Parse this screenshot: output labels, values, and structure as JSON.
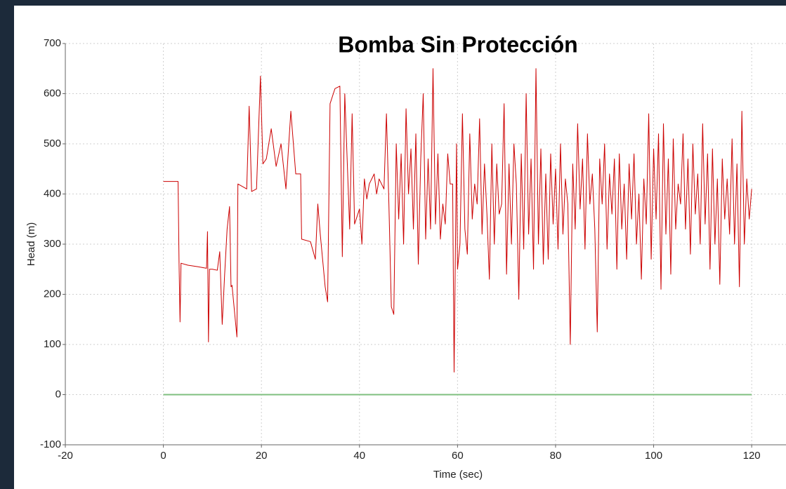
{
  "chart_data": {
    "type": "line",
    "title": "Bomba Sin Protección",
    "x_label": "Time (sec)",
    "y_label": "Head (m)",
    "xlim": [
      -20,
      127
    ],
    "ylim": [
      -100,
      700
    ],
    "xticks": [
      -20,
      0,
      20,
      40,
      60,
      80,
      100,
      120
    ],
    "yticks": [
      -100,
      0,
      100,
      200,
      300,
      400,
      500,
      600,
      700
    ],
    "grid": true,
    "series": [
      {
        "color": "#cc0000",
        "x": [
          0,
          3,
          3.2,
          3.4,
          3.6,
          5,
          7,
          8.8,
          9,
          9.2,
          9.4,
          10,
          11,
          11.5,
          12,
          12.5,
          13,
          13.5,
          13.8,
          14,
          15,
          15.2,
          17,
          17.5,
          18,
          19,
          19.8,
          20.3,
          21,
          22,
          23,
          24,
          25,
          26,
          27,
          28,
          28.2,
          30,
          31,
          31.5,
          32,
          33,
          33.5,
          34,
          35,
          36,
          36.5,
          37,
          38,
          38.5,
          39,
          40,
          40.5,
          41,
          41.5,
          42,
          43,
          43.5,
          44,
          45,
          45.5,
          46,
          46.5,
          47,
          47.5,
          48,
          48.5,
          49,
          49.5,
          50,
          50.5,
          51,
          51.5,
          52,
          52.5,
          53,
          53.5,
          54,
          54.5,
          55,
          55.5,
          56,
          56.5,
          57,
          57.5,
          58,
          58.5,
          59,
          59.3,
          59.8,
          60,
          60.5,
          61,
          61.5,
          62,
          62.5,
          63,
          63.5,
          64,
          64.5,
          65,
          65.5,
          66,
          66.5,
          67,
          67.5,
          68,
          68.5,
          69,
          69.5,
          70,
          70.5,
          71,
          71.5,
          72,
          72.5,
          73,
          73.5,
          74,
          74.5,
          75,
          75.5,
          76,
          76.5,
          77,
          77.5,
          78,
          78.5,
          79,
          79.5,
          80,
          80.5,
          81,
          81.5,
          82,
          82.5,
          83,
          83.5,
          84,
          84.5,
          85,
          85.5,
          86,
          86.5,
          87,
          87.5,
          88,
          88.5,
          89,
          89.5,
          90,
          90.5,
          91,
          91.5,
          92,
          92.5,
          93,
          93.5,
          94,
          94.5,
          95,
          95.5,
          96,
          96.5,
          97,
          97.5,
          98,
          98.5,
          99,
          99.5,
          100,
          100.5,
          101,
          101.5,
          102,
          102.5,
          103,
          103.5,
          104,
          104.5,
          105,
          105.5,
          106,
          106.5,
          107,
          107.5,
          108,
          108.5,
          109,
          109.5,
          110,
          110.5,
          111,
          111.5,
          112,
          112.5,
          113,
          113.5,
          114,
          114.5,
          115,
          115.5,
          116,
          116.5,
          117,
          117.5,
          118,
          118.5,
          119,
          119.5,
          120
        ],
        "values": [
          425,
          425,
          260,
          145,
          262,
          258,
          255,
          252,
          325,
          105,
          250,
          250,
          248,
          285,
          140,
          240,
          330,
          375,
          215,
          218,
          115,
          420,
          410,
          575,
          405,
          410,
          635,
          460,
          470,
          530,
          455,
          500,
          410,
          565,
          440,
          440,
          310,
          305,
          270,
          380,
          320,
          215,
          185,
          580,
          610,
          615,
          275,
          600,
          330,
          560,
          340,
          370,
          300,
          430,
          390,
          420,
          440,
          400,
          430,
          410,
          560,
          380,
          175,
          160,
          500,
          350,
          480,
          300,
          570,
          400,
          490,
          330,
          520,
          260,
          470,
          600,
          310,
          470,
          330,
          650,
          340,
          480,
          310,
          380,
          340,
          480,
          420,
          420,
          45,
          500,
          250,
          300,
          560,
          330,
          280,
          520,
          350,
          420,
          380,
          550,
          320,
          460,
          360,
          230,
          500,
          300,
          460,
          360,
          380,
          580,
          240,
          460,
          300,
          500,
          420,
          190,
          480,
          290,
          600,
          320,
          470,
          250,
          650,
          300,
          490,
          260,
          440,
          270,
          480,
          340,
          450,
          290,
          500,
          320,
          430,
          380,
          100,
          460,
          330,
          540,
          370,
          470,
          290,
          520,
          380,
          440,
          330,
          125,
          470,
          380,
          500,
          290,
          440,
          360,
          470,
          250,
          480,
          330,
          420,
          270,
          460,
          350,
          480,
          300,
          400,
          230,
          430,
          340,
          560,
          270,
          490,
          350,
          520,
          210,
          540,
          320,
          470,
          240,
          510,
          330,
          420,
          380,
          520,
          330,
          470,
          280,
          500,
          360,
          440,
          300,
          540,
          340,
          480,
          250,
          490,
          300,
          430,
          220,
          470,
          350,
          430,
          320,
          510,
          300,
          460,
          215,
          565,
          300,
          430,
          350,
          410
        ]
      },
      {
        "color": "#7fbf7f",
        "x": [
          0,
          120
        ],
        "values": [
          0,
          0
        ]
      }
    ]
  }
}
